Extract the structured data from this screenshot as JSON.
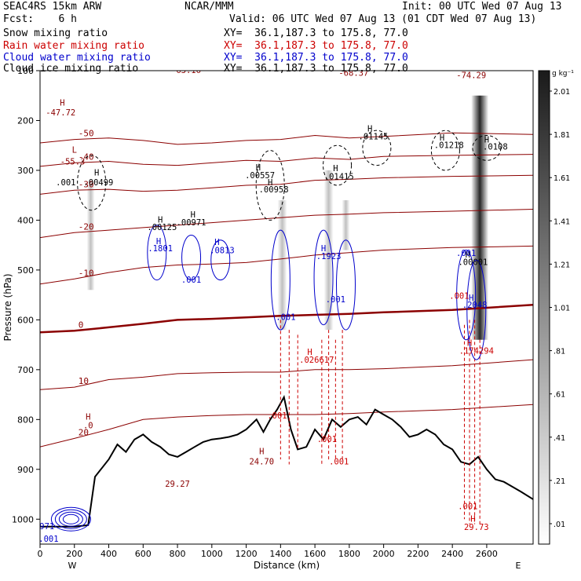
{
  "header": {
    "model": "SEAC4RS 15km ARW",
    "center": "NCAR/MMM",
    "init": "Init: 00 UTC Wed 07 Aug 13",
    "fcst": "Fcst:    6 h",
    "valid": "Valid: 06 UTC Wed 07 Aug 13 (01 CDT Wed 07 Aug 13)",
    "fields": [
      {
        "name": "Snow mixing ratio",
        "xy": "XY=  36.1,187.3 to 175.8, 77.0",
        "color": "#000000"
      },
      {
        "name": "Rain water mixing ratio",
        "xy": "XY=  36.1,187.3 to 175.8, 77.0",
        "color": "#cc0000"
      },
      {
        "name": "Cloud water mixing ratio",
        "xy": "XY=  36.1,187.3 to 175.8, 77.0",
        "color": "#0000cc"
      },
      {
        "name": "Cloud ice mixing ratio",
        "xy": "XY=  36.1,187.3 to 175.8, 77.0",
        "color": "#000000"
      }
    ]
  },
  "chart_data": {
    "type": "cross-section",
    "xlabel": "Distance (km)",
    "ylabel": "Pressure (hPa)",
    "xlim": [
      0,
      2870
    ],
    "ylim": [
      1050,
      100
    ],
    "xticks": [
      0,
      200,
      400,
      600,
      800,
      1000,
      1200,
      1400,
      1600,
      1800,
      2000,
      2200,
      2400,
      2600
    ],
    "yticks": [
      100,
      200,
      300,
      400,
      500,
      600,
      700,
      800,
      900,
      1000
    ],
    "ytick_labels": [
      "100",
      "200",
      "300",
      "400",
      "500",
      "600",
      "700",
      "800",
      "900",
      "1000"
    ],
    "end_labels": {
      "left": "W",
      "right": "E"
    },
    "colorbar": {
      "unit": "g kg⁻¹",
      "levels": [
        0.01,
        0.21,
        0.41,
        0.61,
        0.81,
        1.01,
        1.21,
        1.41,
        1.61,
        1.81,
        2.01
      ],
      "labels": [
        ".01",
        ".21",
        ".41",
        ".61",
        ".81",
        "1.01",
        "1.21",
        "1.41",
        "1.61",
        "1.81",
        "2.01"
      ]
    },
    "terrain_pressure": {
      "x": [
        0,
        50,
        100,
        200,
        280,
        320,
        400,
        450,
        500,
        550,
        600,
        650,
        700,
        750,
        800,
        850,
        900,
        950,
        1000,
        1050,
        1100,
        1150,
        1200,
        1260,
        1300,
        1340,
        1380,
        1420,
        1460,
        1500,
        1550,
        1600,
        1650,
        1700,
        1750,
        1800,
        1850,
        1900,
        1950,
        2000,
        2050,
        2100,
        2150,
        2200,
        2250,
        2300,
        2350,
        2400,
        2450,
        2500,
        2550,
        2600,
        2650,
        2700,
        2750,
        2800,
        2870
      ],
      "p": [
        1015,
        1015,
        1015,
        1015,
        1012,
        915,
        880,
        850,
        865,
        840,
        830,
        845,
        855,
        870,
        875,
        865,
        855,
        845,
        840,
        838,
        835,
        830,
        820,
        800,
        825,
        800,
        780,
        755,
        820,
        860,
        855,
        820,
        840,
        800,
        815,
        800,
        795,
        810,
        780,
        790,
        800,
        815,
        835,
        830,
        820,
        830,
        850,
        860,
        885,
        890,
        875,
        900,
        920,
        925,
        935,
        945,
        960
      ]
    },
    "temperature_isotherms_C": [
      {
        "label": "-50",
        "p": [
          245,
          238,
          235,
          240,
          248,
          245,
          240,
          238,
          230,
          235,
          232,
          225,
          228
        ],
        "x": [
          0,
          200,
          400,
          600,
          800,
          1000,
          1200,
          1400,
          1600,
          1800,
          2000,
          2400,
          2870
        ]
      },
      {
        "label": "-40",
        "p": [
          292,
          285,
          282,
          288,
          290,
          285,
          280,
          282,
          275,
          278,
          272,
          270,
          268
        ],
        "x": [
          0,
          200,
          400,
          600,
          800,
          1000,
          1200,
          1400,
          1600,
          1800,
          2000,
          2400,
          2870
        ]
      },
      {
        "label": "-30",
        "p": [
          348,
          340,
          338,
          342,
          340,
          335,
          330,
          328,
          320,
          318,
          315,
          312,
          310
        ],
        "x": [
          0,
          200,
          400,
          600,
          800,
          1000,
          1200,
          1400,
          1600,
          1800,
          2000,
          2400,
          2870
        ]
      },
      {
        "label": "-20",
        "p": [
          435,
          425,
          420,
          415,
          410,
          405,
          400,
          395,
          390,
          388,
          385,
          382,
          378
        ],
        "x": [
          0,
          200,
          400,
          600,
          800,
          1000,
          1200,
          1400,
          1600,
          1800,
          2000,
          2400,
          2870
        ]
      },
      {
        "label": "-10",
        "p": [
          528,
          518,
          505,
          495,
          490,
          488,
          485,
          478,
          470,
          465,
          460,
          455,
          452
        ],
        "x": [
          0,
          200,
          400,
          600,
          800,
          1000,
          1200,
          1400,
          1600,
          1800,
          2000,
          2400,
          2870
        ]
      },
      {
        "label": "0",
        "p": [
          625,
          622,
          615,
          608,
          600,
          598,
          595,
          592,
          590,
          588,
          585,
          580,
          570
        ],
        "x": [
          0,
          200,
          400,
          600,
          800,
          1000,
          1200,
          1400,
          1600,
          1800,
          2000,
          2400,
          2870
        ]
      },
      {
        "label": "10",
        "p": [
          740,
          735,
          720,
          715,
          708,
          706,
          705,
          705,
          700,
          700,
          698,
          692,
          680
        ],
        "x": [
          0,
          200,
          400,
          600,
          800,
          1000,
          1200,
          1400,
          1600,
          1800,
          2000,
          2400,
          2870
        ]
      },
      {
        "label": "20",
        "p": [
          855,
          838,
          820,
          800,
          795,
          792,
          790,
          790,
          790,
          788,
          785,
          780,
          770
        ],
        "x": [
          0,
          200,
          400,
          600,
          800,
          1000,
          1200,
          1400,
          1600,
          1800,
          2000,
          2400,
          2870
        ]
      }
    ],
    "annotations": [
      {
        "text": "-63.16",
        "x": 850,
        "p": 105,
        "color": "#8b0000"
      },
      {
        "text": "-68.37",
        "x": 1825,
        "p": 110,
        "color": "#8b0000"
      },
      {
        "text": "-74.29",
        "x": 2510,
        "p": 115,
        "color": "#8b0000"
      },
      {
        "text": "H",
        "x": 130,
        "p": 170,
        "color": "#8b0000"
      },
      {
        "text": "-47.72",
        "x": 120,
        "p": 190,
        "color": "#8b0000"
      },
      {
        "text": "L",
        "x": 200,
        "p": 265,
        "color": "#8b0000"
      },
      {
        "text": "-55.3",
        "x": 190,
        "p": 288,
        "color": "#8b0000"
      },
      {
        "text": ".001",
        "x": 150,
        "p": 330,
        "color": "#000000"
      },
      {
        "text": "H",
        "x": 330,
        "p": 310,
        "color": "#000000"
      },
      {
        "text": ".00499",
        "x": 340,
        "p": 330,
        "color": "#000000"
      },
      {
        "text": "H",
        "x": 890,
        "p": 395,
        "color": "#000000"
      },
      {
        "text": ".00971",
        "x": 880,
        "p": 410,
        "color": "#000000"
      },
      {
        "text": "H",
        "x": 1270,
        "p": 300,
        "color": "#000000"
      },
      {
        "text": ".00557",
        "x": 1280,
        "p": 316,
        "color": "#000000"
      },
      {
        "text": "H",
        "x": 1340,
        "p": 330,
        "color": "#000000"
      },
      {
        "text": ".00958",
        "x": 1360,
        "p": 344,
        "color": "#000000"
      },
      {
        "text": "H",
        "x": 1720,
        "p": 302,
        "color": "#000000"
      },
      {
        "text": ".01415",
        "x": 1740,
        "p": 318,
        "color": "#000000"
      },
      {
        "text": "H",
        "x": 1920,
        "p": 222,
        "color": "#000000"
      },
      {
        "text": ".01145",
        "x": 1940,
        "p": 238,
        "color": "#000000"
      },
      {
        "text": "H",
        "x": 2340,
        "p": 240,
        "color": "#000000"
      },
      {
        "text": ".01218",
        "x": 2380,
        "p": 255,
        "color": "#000000"
      },
      {
        "text": "H",
        "x": 2600,
        "p": 244,
        "color": "#000000"
      },
      {
        "text": ".0108",
        "x": 2650,
        "p": 258,
        "color": "#000000"
      },
      {
        "text": "H",
        "x": 700,
        "p": 405,
        "color": "#000000"
      },
      {
        "text": ".00125",
        "x": 710,
        "p": 420,
        "color": "#000000"
      },
      {
        "text": "H",
        "x": 690,
        "p": 448,
        "color": "#0000cc"
      },
      {
        "text": ".1801",
        "x": 700,
        "p": 462,
        "color": "#0000cc"
      },
      {
        "text": "H",
        "x": 1030,
        "p": 450,
        "color": "#0000cc"
      },
      {
        "text": ".0813",
        "x": 1060,
        "p": 466,
        "color": "#0000cc"
      },
      {
        "text": ".001",
        "x": 880,
        "p": 525,
        "color": "#0000cc"
      },
      {
        "text": "H",
        "x": 1650,
        "p": 462,
        "color": "#0000cc"
      },
      {
        "text": ".1923",
        "x": 1680,
        "p": 478,
        "color": "#0000cc"
      },
      {
        "text": ".001",
        "x": 1720,
        "p": 565,
        "color": "#0000cc"
      },
      {
        "text": ".001",
        "x": 1430,
        "p": 600,
        "color": "#0000cc"
      },
      {
        "text": "H",
        "x": 2490,
        "p": 475,
        "color": "#000000"
      },
      {
        "text": ".00001",
        "x": 2520,
        "p": 490,
        "color": "#000000"
      },
      {
        "text": ".001",
        "x": 2480,
        "p": 472,
        "color": "#0000cc"
      },
      {
        "text": ".001",
        "x": 2440,
        "p": 558,
        "color": "#cc0000"
      },
      {
        "text": "H",
        "x": 2510,
        "p": 562,
        "color": "#0000cc"
      },
      {
        "text": ".2048",
        "x": 2530,
        "p": 576,
        "color": "#0000cc"
      },
      {
        "text": "H",
        "x": 2500,
        "p": 652,
        "color": "#cc0000"
      },
      {
        "text": ".174294",
        "x": 2540,
        "p": 668,
        "color": "#cc0000"
      },
      {
        "text": "H",
        "x": 1570,
        "p": 670,
        "color": "#cc0000"
      },
      {
        "text": ".026617",
        "x": 1610,
        "p": 686,
        "color": "#cc0000"
      },
      {
        "text": ".001",
        "x": 1380,
        "p": 798,
        "color": "#cc0000"
      },
      {
        "text": ".001",
        "x": 1670,
        "p": 845,
        "color": "#cc0000"
      },
      {
        "text": ".001",
        "x": 1740,
        "p": 890,
        "color": "#cc0000"
      },
      {
        "text": "H",
        "x": 280,
        "p": 800,
        "color": "#8b0000"
      },
      {
        "text": ".0",
        "x": 280,
        "p": 818,
        "color": "#8b0000"
      },
      {
        "text": "24.70",
        "x": 1290,
        "p": 890,
        "color": "#8b0000"
      },
      {
        "text": "29.27",
        "x": 800,
        "p": 935,
        "color": "#8b0000"
      },
      {
        "text": "H",
        "x": 1290,
        "p": 870,
        "color": "#8b0000"
      },
      {
        "text": ".001",
        "x": 2490,
        "p": 980,
        "color": "#cc0000"
      },
      {
        "text": "H",
        "x": 2520,
        "p": 1005,
        "color": "#cc0000"
      },
      {
        "text": "29.73",
        "x": 2540,
        "p": 1022,
        "color": "#cc0000"
      },
      {
        "text": "971",
        "x": 40,
        "p": 1020,
        "color": "#0000cc"
      },
      {
        "text": ".001",
        "x": 50,
        "p": 1045,
        "color": "#0000cc"
      }
    ]
  }
}
